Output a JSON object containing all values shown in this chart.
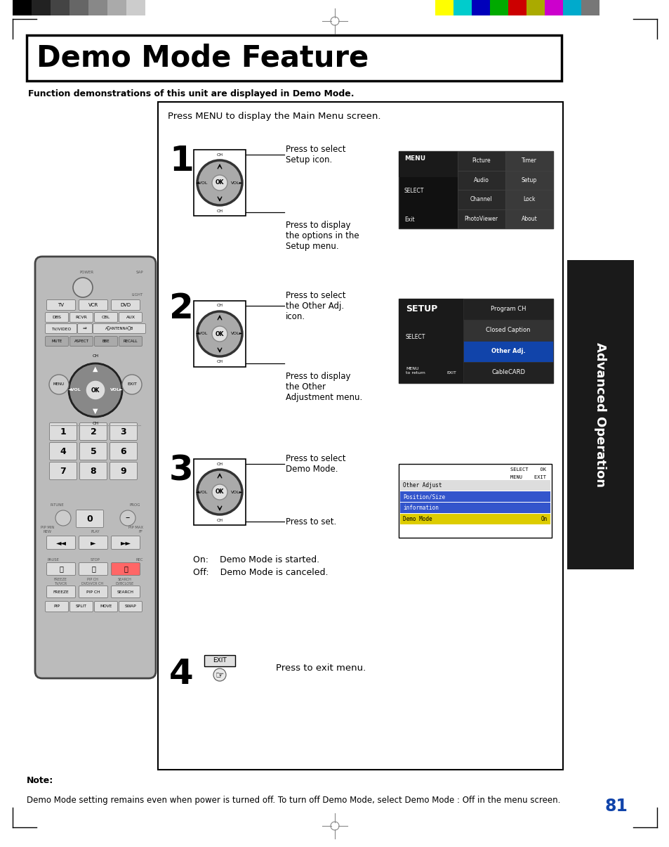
{
  "page_background": "#ffffff",
  "title": "Demo Mode Feature",
  "subtitle": "Function demonstrations of this unit are displayed in Demo Mode.",
  "page_number": "81",
  "sidebar_text": "Advanced Operation",
  "sidebar_bg": "#1a1a1a",
  "sidebar_text_color": "#ffffff",
  "main_box_text": "Press MENU to display the Main Menu screen.",
  "on_off_line1": "On:    Demo Mode is started.",
  "on_off_line2": "Off:    Demo Mode is canceled.",
  "step4_text": "Press to exit menu.",
  "note_title": "Note:",
  "note_text": "Demo Mode setting remains even when power is turned off. To turn off Demo Mode, select Demo Mode : Off in the menu screen.",
  "color_bars_left": [
    "#000000",
    "#222222",
    "#444444",
    "#666666",
    "#888888",
    "#aaaaaa",
    "#cccccc",
    "#ffffff"
  ],
  "color_bars_right": [
    "#ffff00",
    "#00cccc",
    "#0000bb",
    "#00aa00",
    "#cc0000",
    "#aaaa00",
    "#cc00cc",
    "#00aacc",
    "#777777"
  ],
  "rc_body_color": "#bbbbbb",
  "rc_btn_color": "#dddddd",
  "rc_dpad_color": "#888888"
}
